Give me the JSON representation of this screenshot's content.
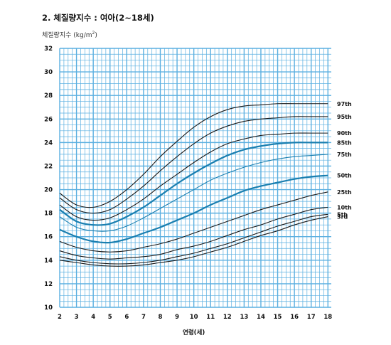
{
  "header": {
    "title": "2. 체질량지수 : 여아(2~18세)",
    "ylabel_text": "체질량지수 (kg/m",
    "ylabel_sup": "2",
    "ylabel_close": ")"
  },
  "colors": {
    "grid": "#5aafe0",
    "dark_line": "#1a1a1a",
    "blue_line": "#1a7fb0",
    "label_blue": "#1a7fb0"
  },
  "chart_data": {
    "type": "line",
    "title": "2. 체질량지수 : 여아(2~18세)",
    "xlabel": "연령(세)",
    "ylabel": "체질량지수 (kg/m2)",
    "xlim": [
      2,
      18.2
    ],
    "ylim": [
      10,
      32
    ],
    "x_ticks": [
      "2",
      "3",
      "4",
      "5",
      "6",
      "7",
      "8",
      "9",
      "10",
      "11",
      "12",
      "13",
      "14",
      "15",
      "16",
      "17",
      "18"
    ],
    "y_ticks": [
      "10",
      "12",
      "14",
      "16",
      "18",
      "20",
      "22",
      "24",
      "26",
      "28",
      "30",
      "32"
    ],
    "grid": true,
    "x": [
      2,
      3,
      4,
      5,
      6,
      7,
      8,
      9,
      10,
      11,
      12,
      13,
      14,
      15,
      16,
      17,
      18
    ],
    "series": [
      {
        "name": "97th",
        "emphasis": "normal",
        "values": [
          19.7,
          18.7,
          18.5,
          19.0,
          20.0,
          21.3,
          22.8,
          24.1,
          25.3,
          26.2,
          26.8,
          27.1,
          27.2,
          27.3,
          27.3,
          27.3,
          27.3
        ]
      },
      {
        "name": "95th",
        "emphasis": "normal",
        "values": [
          19.3,
          18.3,
          18.0,
          18.3,
          19.2,
          20.3,
          21.6,
          22.8,
          23.9,
          24.8,
          25.4,
          25.8,
          26.0,
          26.1,
          26.2,
          26.2,
          26.2
        ]
      },
      {
        "name": "90th",
        "emphasis": "normal",
        "values": [
          18.7,
          17.7,
          17.4,
          17.6,
          18.3,
          19.2,
          20.3,
          21.3,
          22.3,
          23.2,
          23.9,
          24.3,
          24.6,
          24.7,
          24.8,
          24.8,
          24.8
        ]
      },
      {
        "name": "85th",
        "emphasis": "bold",
        "values": [
          18.3,
          17.3,
          17.0,
          17.1,
          17.7,
          18.5,
          19.5,
          20.5,
          21.4,
          22.2,
          22.9,
          23.4,
          23.7,
          23.9,
          24.0,
          24.0,
          24.0
        ]
      },
      {
        "name": "75th",
        "emphasis": "normal",
        "values": [
          17.7,
          16.8,
          16.5,
          16.5,
          16.9,
          17.6,
          18.4,
          19.2,
          20.0,
          20.8,
          21.4,
          21.9,
          22.3,
          22.6,
          22.8,
          22.9,
          23.0
        ]
      },
      {
        "name": "50th",
        "emphasis": "bold",
        "values": [
          16.6,
          16.0,
          15.6,
          15.5,
          15.8,
          16.3,
          16.8,
          17.4,
          18.0,
          18.7,
          19.3,
          19.9,
          20.3,
          20.6,
          20.9,
          21.1,
          21.2
        ]
      },
      {
        "name": "25th",
        "emphasis": "normal",
        "values": [
          15.6,
          15.1,
          14.8,
          14.7,
          14.8,
          15.1,
          15.4,
          15.8,
          16.3,
          16.8,
          17.3,
          17.8,
          18.3,
          18.7,
          19.1,
          19.5,
          19.8
        ]
      },
      {
        "name": "10th",
        "emphasis": "normal",
        "values": [
          14.8,
          14.4,
          14.2,
          14.1,
          14.2,
          14.3,
          14.5,
          14.9,
          15.2,
          15.6,
          16.1,
          16.6,
          17.0,
          17.5,
          17.9,
          18.3,
          18.5
        ]
      },
      {
        "name": "5th",
        "emphasis": "normal",
        "values": [
          14.3,
          14.0,
          13.8,
          13.7,
          13.7,
          13.8,
          14.0,
          14.3,
          14.6,
          15.0,
          15.4,
          15.9,
          16.4,
          16.9,
          17.3,
          17.7,
          17.9
        ]
      },
      {
        "name": "3rd",
        "emphasis": "normal",
        "values": [
          14.0,
          13.8,
          13.6,
          13.5,
          13.5,
          13.6,
          13.8,
          14.0,
          14.3,
          14.7,
          15.1,
          15.6,
          16.1,
          16.5,
          17.0,
          17.4,
          17.7
        ]
      }
    ]
  }
}
